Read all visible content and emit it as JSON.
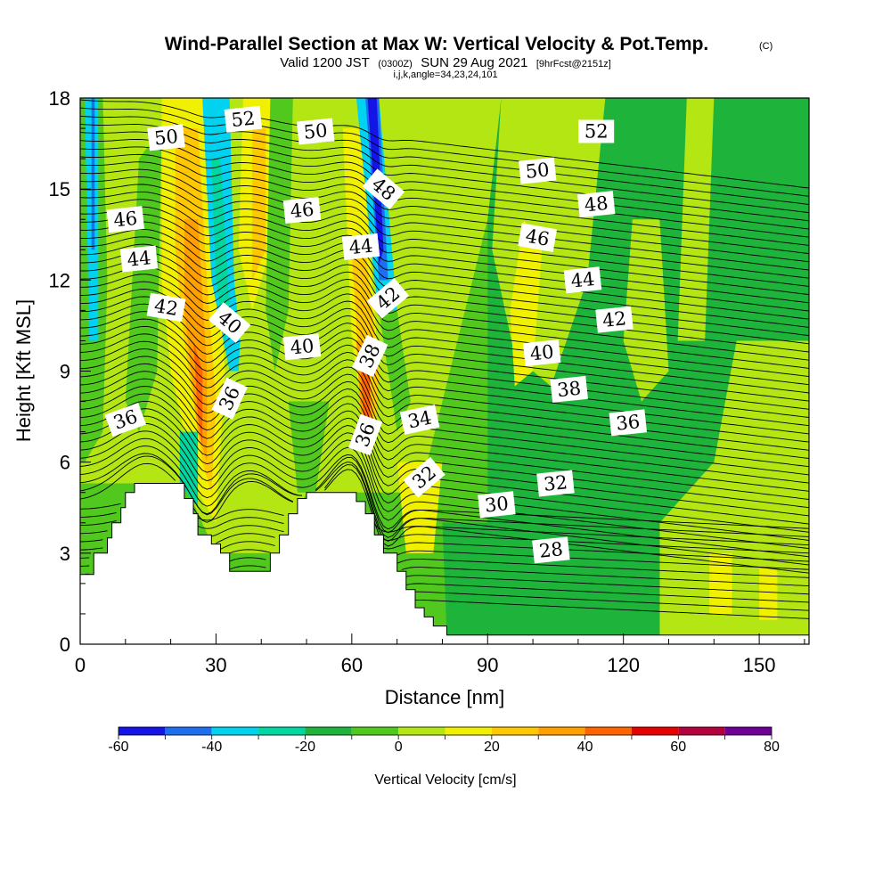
{
  "title": {
    "main": "Wind-Parallel Section at Max W: Vertical Velocity & Pot.Temp.",
    "copyright": "(C)",
    "valid_prefix": "Valid 1200 JST",
    "valid_zulu": "(0300Z)",
    "valid_date": "SUN 29 Aug 2021",
    "forecast": "[9hrFcst@2151z]",
    "indices": "i,j,k,angle=34,23,24,101"
  },
  "chart_data": {
    "type": "heatmap",
    "xlabel": "Distance [nm]",
    "ylabel": "Height [Kft MSL]",
    "xlim": [
      0,
      161
    ],
    "ylim": [
      0,
      18
    ],
    "x_ticks": [
      0,
      30,
      60,
      90,
      120,
      150
    ],
    "y_ticks": [
      0,
      3,
      6,
      9,
      12,
      15,
      18
    ],
    "colorbar": {
      "label": "Vertical Velocity [cm/s]",
      "ticks": [
        -60,
        -40,
        -20,
        0,
        20,
        40,
        60,
        80
      ],
      "range": [
        -60,
        80
      ],
      "colors": [
        "#1414e6",
        "#1e6ef0",
        "#00d2f0",
        "#00d6a0",
        "#1eb43c",
        "#50c81e",
        "#b4e614",
        "#f0f000",
        "#ffc800",
        "#ffa000",
        "#ff6400",
        "#e60000",
        "#b4003c",
        "#6e0096"
      ]
    },
    "fill_field": "Vertical Velocity [cm/s]",
    "contour_field": "Potential temperature",
    "theta_contour_labels": [
      {
        "value": 52,
        "x": 36,
        "y": 17.3
      },
      {
        "value": 50,
        "x": 19,
        "y": 16.7
      },
      {
        "value": 50,
        "x": 52,
        "y": 16.9
      },
      {
        "value": 52,
        "x": 114,
        "y": 16.9
      },
      {
        "value": 50,
        "x": 101,
        "y": 15.6
      },
      {
        "value": 48,
        "x": 67,
        "y": 15.0
      },
      {
        "value": 48,
        "x": 114,
        "y": 14.5
      },
      {
        "value": 46,
        "x": 10,
        "y": 14.0
      },
      {
        "value": 46,
        "x": 49,
        "y": 14.3
      },
      {
        "value": 46,
        "x": 101,
        "y": 13.4
      },
      {
        "value": 44,
        "x": 13,
        "y": 12.7
      },
      {
        "value": 44,
        "x": 62,
        "y": 13.1
      },
      {
        "value": 44,
        "x": 111,
        "y": 12.0
      },
      {
        "value": 42,
        "x": 19,
        "y": 11.1
      },
      {
        "value": 42,
        "x": 68,
        "y": 11.4
      },
      {
        "value": 42,
        "x": 118,
        "y": 10.7
      },
      {
        "value": 40,
        "x": 33,
        "y": 10.6
      },
      {
        "value": 40,
        "x": 49,
        "y": 9.8
      },
      {
        "value": 40,
        "x": 102,
        "y": 9.6
      },
      {
        "value": 38,
        "x": 64,
        "y": 9.5
      },
      {
        "value": 38,
        "x": 108,
        "y": 8.4
      },
      {
        "value": 36,
        "x": 10,
        "y": 7.4
      },
      {
        "value": 36,
        "x": 33,
        "y": 8.1
      },
      {
        "value": 36,
        "x": 63,
        "y": 6.9
      },
      {
        "value": 36,
        "x": 121,
        "y": 7.3
      },
      {
        "value": 34,
        "x": 75,
        "y": 7.4
      },
      {
        "value": 32,
        "x": 76,
        "y": 5.5
      },
      {
        "value": 32,
        "x": 105,
        "y": 5.3
      },
      {
        "value": 30,
        "x": 92,
        "y": 4.6
      },
      {
        "value": 28,
        "x": 104,
        "y": 3.1
      }
    ],
    "terrain_profile": [
      [
        0,
        2.3
      ],
      [
        3,
        2.3
      ],
      [
        3,
        3.0
      ],
      [
        6,
        3.0
      ],
      [
        6,
        3.5
      ],
      [
        7,
        3.5
      ],
      [
        7,
        4.0
      ],
      [
        9,
        4.0
      ],
      [
        9,
        4.5
      ],
      [
        10,
        4.5
      ],
      [
        10,
        5.0
      ],
      [
        12,
        5.0
      ],
      [
        12,
        5.3
      ],
      [
        23,
        5.3
      ],
      [
        23,
        4.8
      ],
      [
        25,
        4.8
      ],
      [
        25,
        4.3
      ],
      [
        26,
        4.3
      ],
      [
        26,
        3.6
      ],
      [
        29,
        3.6
      ],
      [
        29,
        3.3
      ],
      [
        31,
        3.3
      ],
      [
        31,
        3.0
      ],
      [
        33,
        3.0
      ],
      [
        33,
        2.4
      ],
      [
        42,
        2.4
      ],
      [
        42,
        3.0
      ],
      [
        44,
        3.0
      ],
      [
        44,
        3.6
      ],
      [
        46,
        3.6
      ],
      [
        46,
        4.3
      ],
      [
        48,
        4.3
      ],
      [
        48,
        4.8
      ],
      [
        50,
        4.8
      ],
      [
        50,
        5.0
      ],
      [
        61,
        5.0
      ],
      [
        61,
        4.7
      ],
      [
        63,
        4.7
      ],
      [
        63,
        4.3
      ],
      [
        65,
        4.3
      ],
      [
        65,
        3.6
      ],
      [
        67,
        3.6
      ],
      [
        67,
        3.0
      ],
      [
        70,
        3.0
      ],
      [
        70,
        2.4
      ],
      [
        72,
        2.4
      ],
      [
        72,
        1.8
      ],
      [
        74,
        1.8
      ],
      [
        74,
        1.2
      ],
      [
        76,
        1.2
      ],
      [
        76,
        0.9
      ],
      [
        78,
        0.9
      ],
      [
        78,
        0.6
      ],
      [
        81,
        0.6
      ],
      [
        81,
        0.3
      ],
      [
        161,
        0.3
      ]
    ]
  }
}
